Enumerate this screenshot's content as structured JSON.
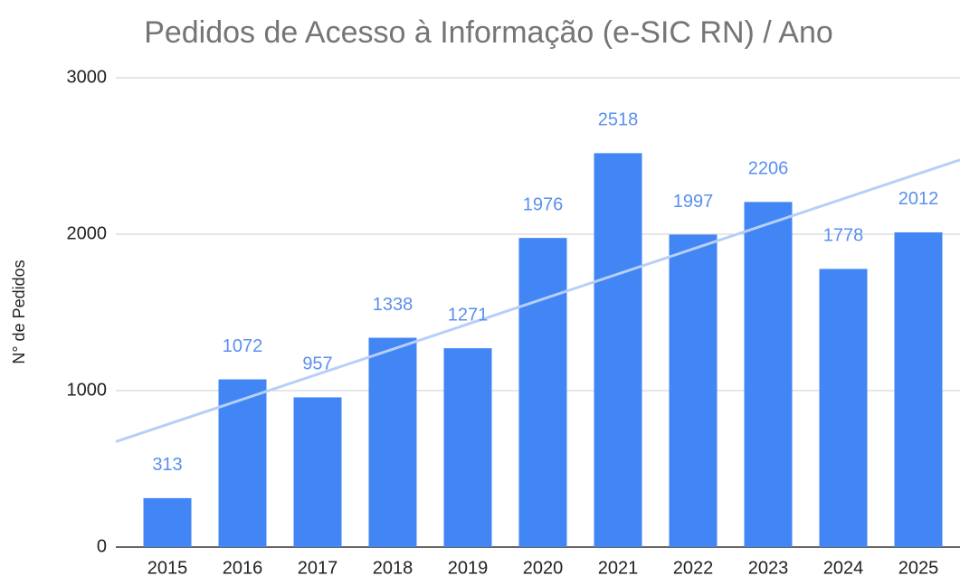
{
  "chart_data": {
    "type": "bar",
    "title": "Pedidos de Acesso à Informação (e-SIC RN) / Ano",
    "y_label": "N° de Pedidos",
    "categories": [
      "2015",
      "2016",
      "2017",
      "2018",
      "2019",
      "2020",
      "2021",
      "2022",
      "2023",
      "2024",
      "2025"
    ],
    "values": [
      313,
      1072,
      957,
      1338,
      1271,
      1976,
      2518,
      1997,
      2206,
      1778,
      2012
    ],
    "color": "#4285f4",
    "label_color": "#5b8fef",
    "trendline": true,
    "trendline_color": "#b7cff8",
    "ylim": [
      0,
      3000
    ],
    "yticks": [
      0,
      1000,
      2000,
      3000
    ],
    "grid": true
  }
}
